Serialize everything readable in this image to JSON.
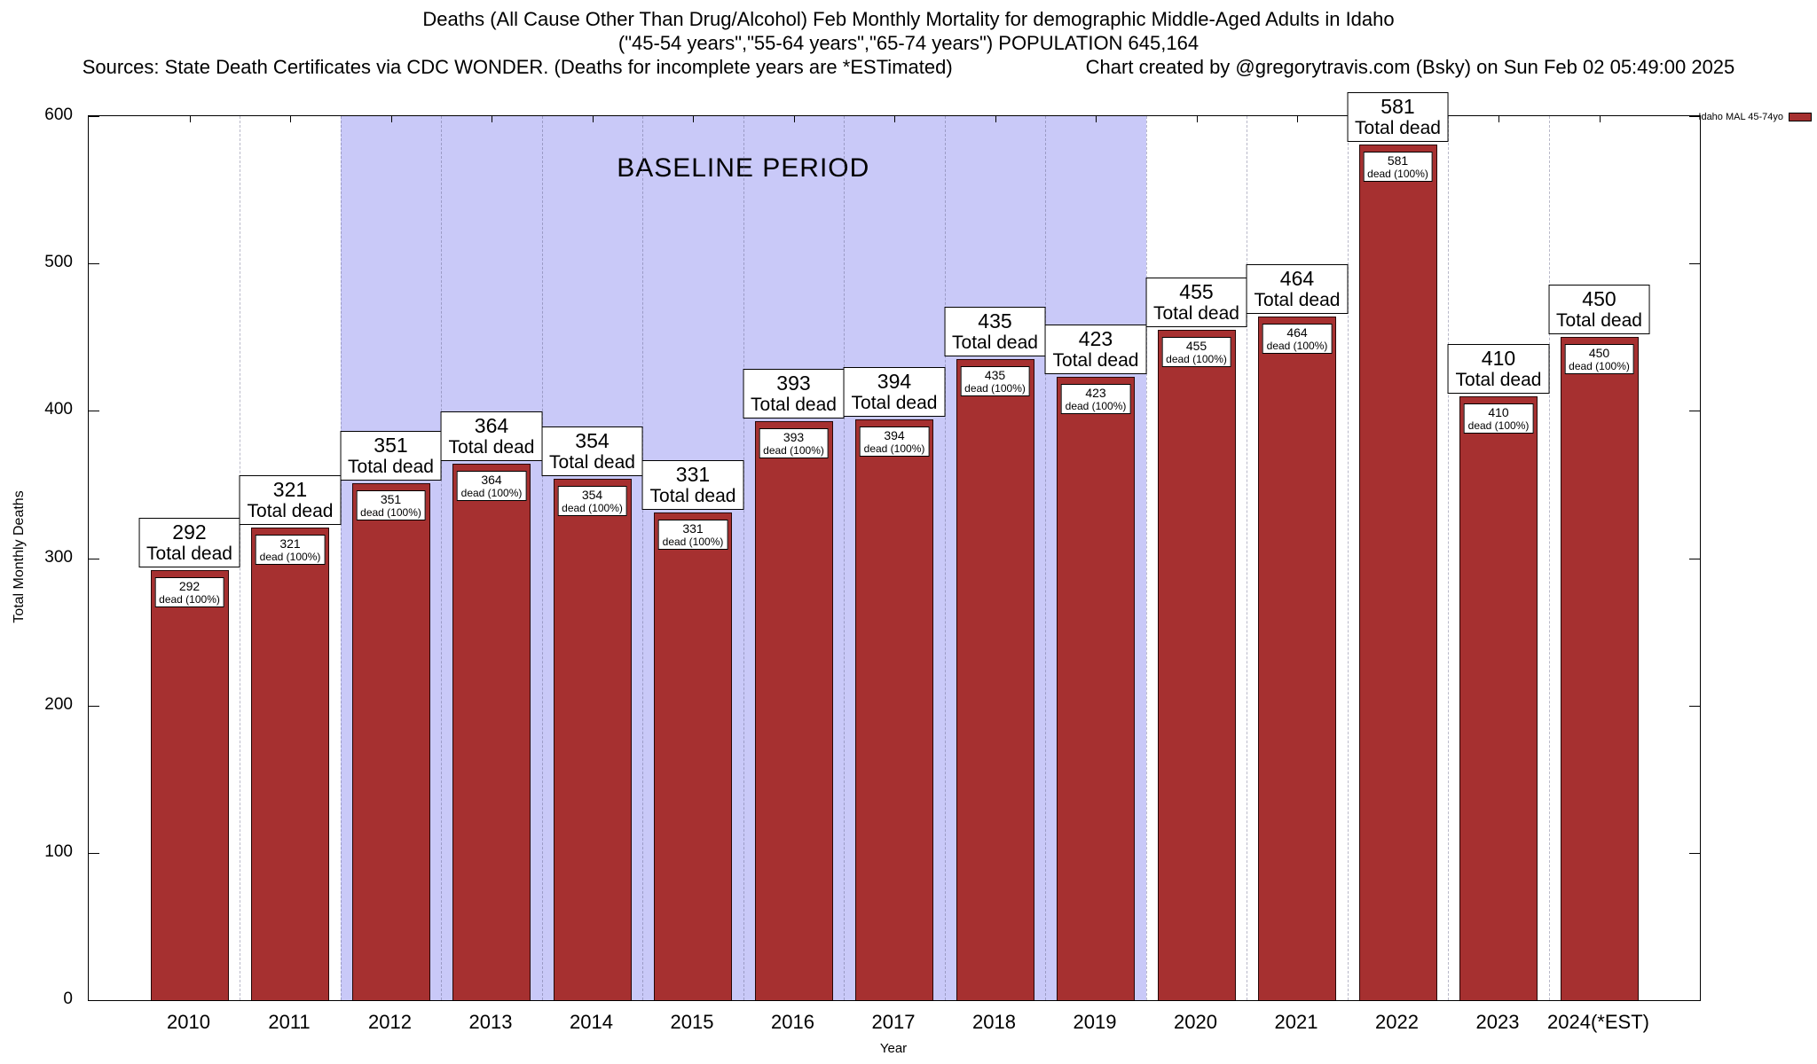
{
  "title": {
    "line1": "Deaths (All Cause Other Than Drug/Alcohol) Feb Monthly Mortality for demographic Middle-Aged Adults in Idaho",
    "line2": "(\"45-54 years\",\"55-64 years\",\"65-74 years\") POPULATION 645,164",
    "sources": "Sources: State Death Certificates via CDC WONDER. (Deaths for incomplete years are *ESTimated)",
    "credit": "Chart created by @gregorytravis.com (Bsky) on Sun Feb 02 05:49:00 2025"
  },
  "legend": {
    "label": "Idaho MAL 45-74yo",
    "swatch_color": "#a63030"
  },
  "chart_data": {
    "type": "bar",
    "title": "Deaths (All Cause Other Than Drug/Alcohol) Feb Monthly Mortality for demographic Middle-Aged Adults in Idaho",
    "subtitle": "(\"45-54 years\",\"55-64 years\",\"65-74 years\") POPULATION 645,164",
    "xlabel": "Year",
    "ylabel": "Total Monthly Deaths",
    "ylim": [
      0,
      600
    ],
    "yticks": [
      0,
      100,
      200,
      300,
      400,
      500,
      600
    ],
    "categories": [
      "2010",
      "2011",
      "2012",
      "2013",
      "2014",
      "2015",
      "2016",
      "2017",
      "2018",
      "2019",
      "2020",
      "2021",
      "2022",
      "2023",
      "2024(*EST)"
    ],
    "series": [
      {
        "name": "Idaho MAL 45-74yo",
        "values": [
          292,
          321,
          351,
          364,
          354,
          331,
          393,
          394,
          435,
          423,
          455,
          464,
          581,
          410,
          450
        ]
      }
    ],
    "bar_color": "#a63030",
    "bar_top_label_suffix": "Total dead",
    "bar_inner_label_suffix": "dead (100%)",
    "baseline_region": {
      "label": "BASELINE PERIOD",
      "from_category": "2012",
      "to_category": "2019",
      "from_index": 2,
      "to_index": 9,
      "color": "#c9c9f8"
    },
    "grid": "vertical-dashed-between-categories",
    "legend_position": "top-right"
  }
}
